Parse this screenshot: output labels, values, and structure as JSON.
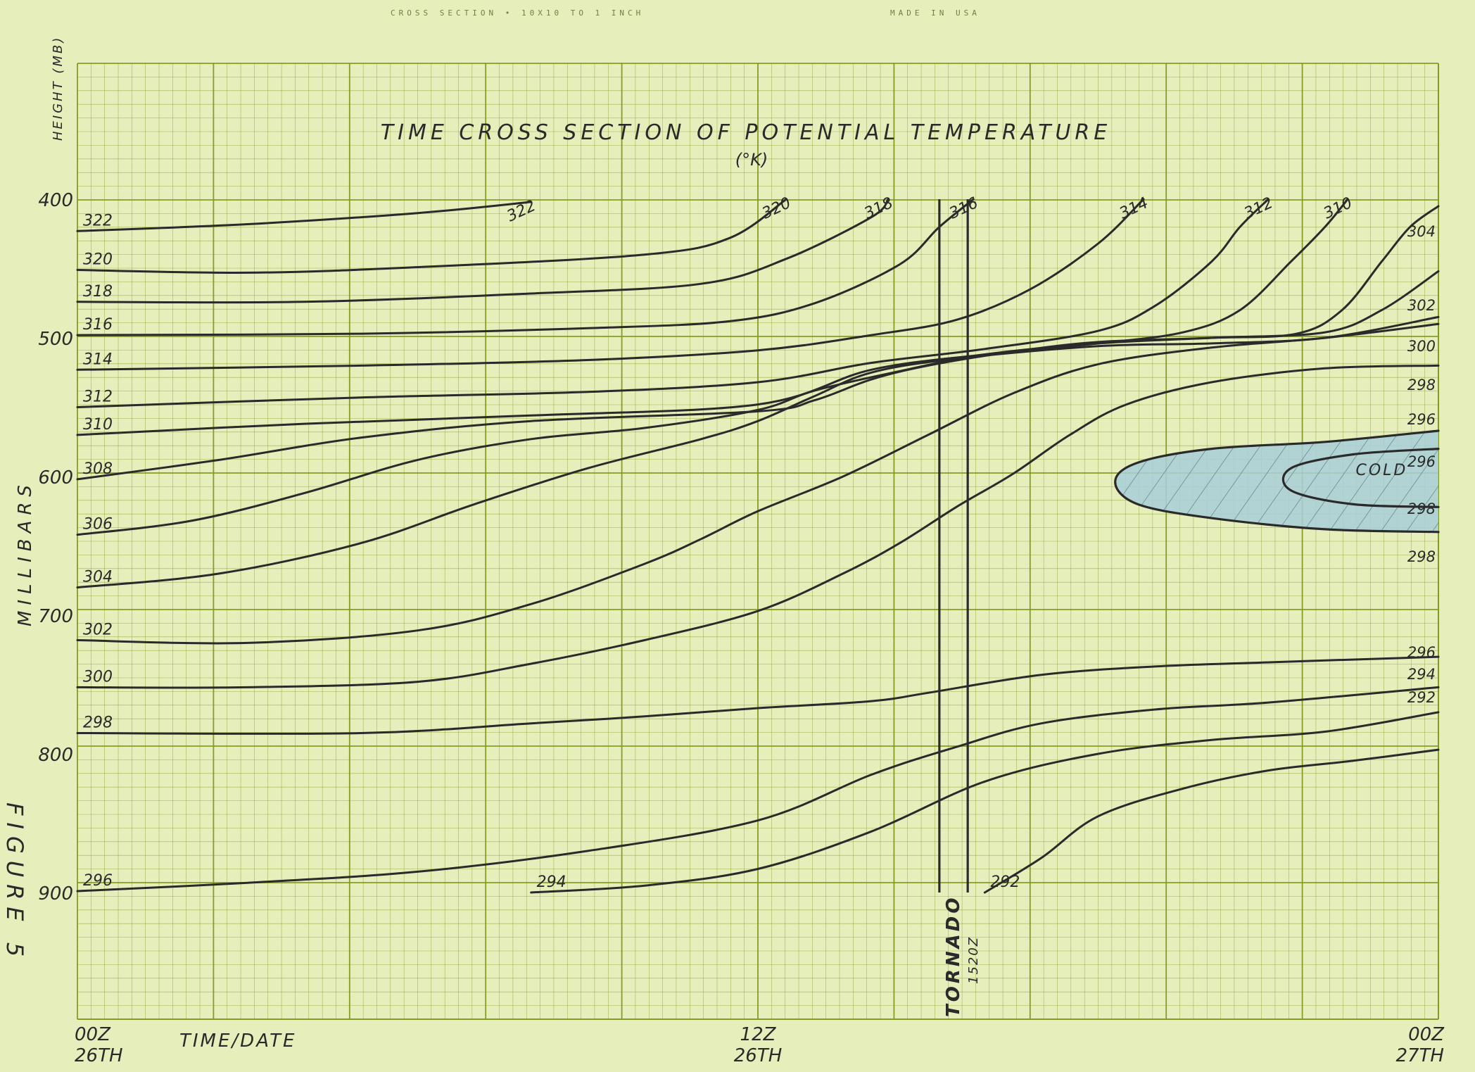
{
  "paper": {
    "header_left": "CROSS SECTION • 10X10 TO 1 INCH",
    "header_right": "MADE IN USA",
    "figure_label": "FIGURE 5",
    "grid_color": "#7f9a1e",
    "paper_color": "#e6eebc",
    "ink_color": "#2a2a2a",
    "cold_fill": "#a9cfd8"
  },
  "chart_data": {
    "type": "line",
    "title": "TIME CROSS SECTION OF POTENTIAL TEMPERATURE",
    "subtitle": "(°K)",
    "ylabel_top": "HEIGHT (MB)",
    "ylabel": "MILLIBARS",
    "xlabel": "TIME/DATE",
    "xlim": [
      0,
      24
    ],
    "ylim": [
      1000,
      400
    ],
    "y_ticks": [
      {
        "v": 400,
        "label": "400"
      },
      {
        "v": 500,
        "label": "500"
      },
      {
        "v": 600,
        "label": "600"
      },
      {
        "v": 700,
        "label": "700"
      },
      {
        "v": 800,
        "label": "800"
      },
      {
        "v": 900,
        "label": "900"
      }
    ],
    "x_ticks": [
      {
        "v": 0,
        "line1": "00Z",
        "line2": "26TH"
      },
      {
        "v": 12,
        "line1": "12Z",
        "line2": "26TH"
      },
      {
        "v": 24,
        "line1": "00Z",
        "line2": "27TH"
      }
    ],
    "grid": true,
    "isentropes": [
      {
        "label": "322",
        "points": [
          [
            0,
            423
          ],
          [
            3,
            418
          ],
          [
            6,
            410
          ],
          [
            8,
            402
          ]
        ]
      },
      {
        "label": "320",
        "points": [
          [
            0,
            451
          ],
          [
            3,
            453
          ],
          [
            6,
            449
          ],
          [
            10,
            440
          ],
          [
            11.5,
            428
          ],
          [
            12.5,
            400
          ]
        ]
      },
      {
        "label": "318",
        "points": [
          [
            0,
            474
          ],
          [
            4,
            474
          ],
          [
            8,
            468
          ],
          [
            11,
            461
          ],
          [
            12.5,
            443
          ],
          [
            14,
            413
          ],
          [
            14.3,
            400
          ]
        ]
      },
      {
        "label": "316",
        "points": [
          [
            0,
            498
          ],
          [
            5,
            497
          ],
          [
            9,
            493
          ],
          [
            11.5,
            488
          ],
          [
            13,
            475
          ],
          [
            14.5,
            447
          ],
          [
            15.2,
            420
          ],
          [
            15.8,
            400
          ]
        ]
      },
      {
        "label": "314",
        "points": [
          [
            0,
            523
          ],
          [
            5,
            520
          ],
          [
            9,
            516
          ],
          [
            12,
            509
          ],
          [
            14,
            498
          ],
          [
            15.5,
            487
          ],
          [
            16.8,
            465
          ],
          [
            18,
            432
          ],
          [
            18.8,
            400
          ]
        ]
      },
      {
        "label": "312",
        "points": [
          [
            0,
            550
          ],
          [
            5,
            543
          ],
          [
            9,
            539
          ],
          [
            12,
            532
          ],
          [
            14,
            518
          ],
          [
            16,
            508
          ],
          [
            18,
            495
          ],
          [
            19,
            477
          ],
          [
            20,
            445
          ],
          [
            20.5,
            420
          ],
          [
            21,
            400
          ]
        ]
      },
      {
        "label": "310",
        "points": [
          [
            0,
            570
          ],
          [
            4,
            562
          ],
          [
            8,
            556
          ],
          [
            12,
            548
          ],
          [
            14,
            523
          ],
          [
            16,
            512
          ],
          [
            18,
            504
          ],
          [
            19.5,
            496
          ],
          [
            20.5,
            480
          ],
          [
            21.4,
            445
          ],
          [
            22,
            420
          ],
          [
            22.4,
            400
          ]
        ]
      },
      {
        "label": "308",
        "points": [
          [
            0,
            602
          ],
          [
            2.5,
            588
          ],
          [
            5,
            572
          ],
          [
            8,
            560
          ],
          [
            12,
            553
          ],
          [
            13,
            545
          ],
          [
            14,
            530
          ],
          [
            15,
            520
          ],
          [
            16.5,
            510
          ],
          [
            18,
            503
          ],
          [
            20,
            500
          ],
          [
            21.5,
            497
          ],
          [
            22.3,
            480
          ],
          [
            23,
            445
          ],
          [
            23.5,
            420
          ],
          [
            24,
            405
          ]
        ]
      },
      {
        "label": "306",
        "points": [
          [
            0,
            642
          ],
          [
            2,
            632
          ],
          [
            4,
            612
          ],
          [
            6,
            588
          ],
          [
            8,
            573
          ],
          [
            10,
            565
          ],
          [
            12,
            552
          ],
          [
            13,
            538
          ],
          [
            14.5,
            524
          ],
          [
            16,
            512
          ],
          [
            18,
            504
          ],
          [
            20,
            500
          ],
          [
            22,
            496
          ],
          [
            23,
            480
          ],
          [
            24,
            452
          ]
        ]
      },
      {
        "label": "304",
        "points": [
          [
            0,
            680
          ],
          [
            2.5,
            670
          ],
          [
            5,
            648
          ],
          [
            7,
            620
          ],
          [
            9,
            594
          ],
          [
            11,
            573
          ],
          [
            12,
            560
          ],
          [
            13,
            542
          ],
          [
            14,
            525
          ],
          [
            15.5,
            515
          ],
          [
            18,
            506
          ],
          [
            20,
            504
          ],
          [
            22,
            500
          ],
          [
            24,
            485
          ]
        ]
      },
      {
        "label": "302",
        "points": [
          [
            0,
            718
          ],
          [
            3,
            720
          ],
          [
            6,
            711
          ],
          [
            8,
            692
          ],
          [
            10,
            663
          ],
          [
            11,
            645
          ],
          [
            12,
            625
          ],
          [
            13.5,
            600
          ],
          [
            15,
            570
          ],
          [
            16.5,
            540
          ],
          [
            18,
            519
          ],
          [
            20,
            507
          ],
          [
            22,
            500
          ],
          [
            24,
            490
          ]
        ]
      },
      {
        "label": "300",
        "points": [
          [
            0,
            752
          ],
          [
            3,
            752
          ],
          [
            6,
            748
          ],
          [
            8,
            735
          ],
          [
            10,
            718
          ],
          [
            12,
            697
          ],
          [
            13.5,
            670
          ],
          [
            14.5,
            648
          ],
          [
            15.5,
            622
          ],
          [
            16.5,
            598
          ],
          [
            17.5,
            570
          ],
          [
            18.5,
            548
          ],
          [
            20,
            532
          ],
          [
            22,
            522
          ],
          [
            24,
            520
          ]
        ]
      },
      {
        "label": "298",
        "points": [
          [
            0,
            785
          ],
          [
            5,
            785
          ],
          [
            8,
            778
          ],
          [
            10,
            773
          ],
          [
            12,
            767
          ],
          [
            14,
            762
          ],
          [
            15,
            756
          ],
          [
            17,
            743
          ],
          [
            19,
            737
          ],
          [
            21,
            734
          ],
          [
            24,
            730
          ]
        ]
      },
      {
        "label": "296",
        "points": [
          [
            0,
            899
          ],
          [
            3,
            893
          ],
          [
            6,
            885
          ],
          [
            9,
            870
          ],
          [
            12,
            848
          ],
          [
            14,
            815
          ],
          [
            15.5,
            795
          ],
          [
            17,
            778
          ],
          [
            19,
            768
          ],
          [
            21,
            763
          ],
          [
            24,
            752
          ]
        ]
      },
      {
        "label": "294",
        "points": [
          [
            8,
            900
          ],
          [
            10,
            895
          ],
          [
            12,
            883
          ],
          [
            14,
            856
          ],
          [
            16,
            820
          ],
          [
            18,
            800
          ],
          [
            20,
            790
          ],
          [
            22,
            784
          ],
          [
            24,
            770
          ]
        ]
      },
      {
        "label": "292",
        "points": [
          [
            16,
            900
          ],
          [
            17,
            875
          ],
          [
            18,
            845
          ],
          [
            19.5,
            825
          ],
          [
            21,
            812
          ],
          [
            22.5,
            805
          ],
          [
            24,
            797
          ]
        ]
      }
    ],
    "edge_labels_right": [
      "304",
      "302",
      "300",
      "298",
      "296",
      "296",
      "298",
      "298",
      "296",
      "294",
      "292"
    ],
    "cold_region": {
      "label": "COLD",
      "outer_isentrope": "298",
      "inner_isentrope": "296",
      "outer": [
        [
          24,
          567
        ],
        [
          22,
          575
        ],
        [
          20,
          580
        ],
        [
          18.7,
          590
        ],
        [
          18.3,
          604
        ],
        [
          18.7,
          620
        ],
        [
          20,
          630
        ],
        [
          22,
          638
        ],
        [
          24,
          640
        ]
      ],
      "inner": [
        [
          24,
          580
        ],
        [
          22.5,
          584
        ],
        [
          21.4,
          594
        ],
        [
          21.4,
          610
        ],
        [
          22.5,
          620
        ],
        [
          24,
          622
        ]
      ]
    },
    "event_marker": {
      "label": "TORNADO",
      "time_label": "1520Z",
      "x_start": 15.2,
      "x_end": 15.7
    }
  }
}
